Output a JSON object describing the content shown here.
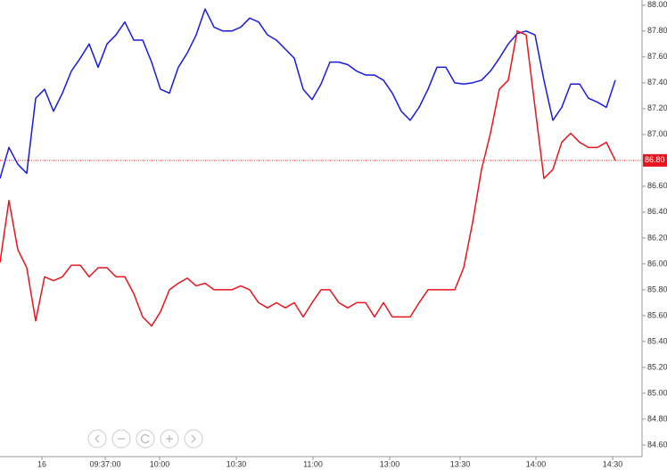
{
  "chart_data": {
    "type": "line",
    "series": [
      {
        "color": "#1a1adc",
        "values": [
          86.66,
          86.9,
          86.77,
          86.7,
          87.28,
          87.35,
          87.18,
          87.32,
          87.49,
          87.59,
          87.7,
          87.52,
          87.7,
          87.77,
          87.87,
          87.73,
          87.73,
          87.56,
          87.35,
          87.32,
          87.52,
          87.63,
          87.77,
          87.97,
          87.83,
          87.8,
          87.8,
          87.83,
          87.9,
          87.87,
          87.77,
          87.73,
          87.66,
          87.59,
          87.35,
          87.27,
          87.39,
          87.56,
          87.56,
          87.54,
          87.49,
          87.46,
          87.46,
          87.42,
          87.32,
          87.18,
          87.11,
          87.21,
          87.35,
          87.52,
          87.52,
          87.4,
          87.39,
          87.4,
          87.42,
          87.49,
          87.59,
          87.7,
          87.78,
          87.8,
          87.77,
          87.42,
          87.11,
          87.21,
          87.39,
          87.39,
          87.28,
          87.25,
          87.21,
          87.42
        ]
      },
      {
        "color": "#e8141e",
        "values": [
          86.01,
          86.49,
          86.11,
          85.97,
          85.56,
          85.9,
          85.87,
          85.9,
          85.99,
          85.99,
          85.9,
          85.97,
          85.97,
          85.9,
          85.9,
          85.77,
          85.59,
          85.52,
          85.63,
          85.8,
          85.85,
          85.89,
          85.83,
          85.85,
          85.8,
          85.8,
          85.8,
          85.83,
          85.8,
          85.7,
          85.66,
          85.7,
          85.66,
          85.7,
          85.59,
          85.7,
          85.8,
          85.8,
          85.7,
          85.66,
          85.7,
          85.7,
          85.59,
          85.7,
          85.59,
          85.59,
          85.59,
          85.7,
          85.8,
          85.8,
          85.8,
          85.8,
          85.97,
          86.32,
          86.73,
          87.01,
          87.35,
          87.42,
          87.8,
          87.77,
          87.21,
          86.66,
          86.73,
          86.94,
          87.01,
          86.94,
          86.9,
          86.9,
          86.94,
          86.8
        ]
      }
    ],
    "reference_line": {
      "value": 86.8,
      "label": "86.80",
      "color": "#e8141e"
    },
    "xlim": [
      0,
      69.5
    ],
    "xticks": [
      {
        "value": 4.7,
        "label": "16"
      },
      {
        "value": 11.8,
        "label": "09:37:00"
      },
      {
        "value": 17.9,
        "label": "10:00"
      },
      {
        "value": 26.5,
        "label": "10:30"
      },
      {
        "value": 35.1,
        "label": "11:00"
      },
      {
        "value": 43.7,
        "label": "13:00"
      },
      {
        "value": 51.6,
        "label": "13:30"
      },
      {
        "value": 60.1,
        "label": "14:00"
      },
      {
        "value": 68.7,
        "label": "14:30"
      }
    ],
    "ylim": [
      84.51,
      88.04
    ],
    "yticks": [
      {
        "value": 84.6,
        "label": "84.60"
      },
      {
        "value": 84.8,
        "label": "84.80"
      },
      {
        "value": 85.0,
        "label": "85.00"
      },
      {
        "value": 85.2,
        "label": "85.20"
      },
      {
        "value": 85.4,
        "label": "85.40"
      },
      {
        "value": 85.6,
        "label": "85.60"
      },
      {
        "value": 85.8,
        "label": "85.80"
      },
      {
        "value": 86.0,
        "label": "86.00"
      },
      {
        "value": 86.2,
        "label": "86.20"
      },
      {
        "value": 86.4,
        "label": "86.40"
      },
      {
        "value": 86.6,
        "label": "86.60"
      },
      {
        "value": 86.8,
        "label": "86.80"
      },
      {
        "value": 87.0,
        "label": "87.00"
      },
      {
        "value": 87.2,
        "label": "87.20"
      },
      {
        "value": 87.4,
        "label": "87.40"
      },
      {
        "value": 87.6,
        "label": "87.60"
      },
      {
        "value": 87.8,
        "label": "87.80"
      },
      {
        "value": 88.0,
        "label": "88.00"
      }
    ]
  }
}
